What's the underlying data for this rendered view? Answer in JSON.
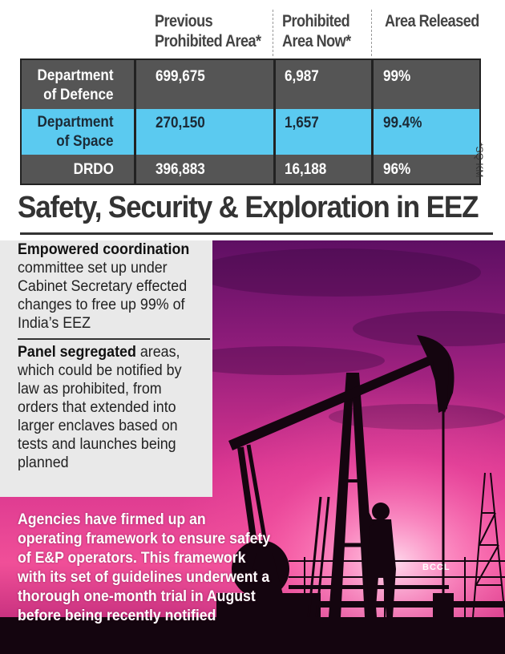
{
  "table": {
    "headers": [
      "Previous\nProhibited Area*",
      "Prohibited\nArea Now*",
      "Area Released"
    ],
    "header_lines": [
      [
        "Previous",
        "Prohibited Area*"
      ],
      [
        "Prohibited",
        "Area Now*"
      ],
      [
        "Area Released"
      ]
    ],
    "rows": [
      {
        "label": [
          "Department",
          "of Defence"
        ],
        "previous": "699,675",
        "now": "6,987",
        "released": "99%"
      },
      {
        "label": [
          "Department",
          "of Space"
        ],
        "previous": "270,150",
        "now": "1,657",
        "released": "99.4%"
      },
      {
        "label": [
          "DRDO"
        ],
        "previous": "396,883",
        "now": "16,188",
        "released": "96%"
      }
    ],
    "unit_note": "*SQ KM"
  },
  "heading": "Safety, Security & Exploration in EEZ",
  "paragraphs": [
    {
      "bold": "Empowered coordination",
      "text": " committee set up under Cabinet Secretary effected changes to free up 99% of India’s EEZ"
    },
    {
      "bold": "Panel segregated",
      "text": " areas, which could be notified by law as prohibited, from orders that extended into larger enclaves based on tests and launches being planned"
    }
  ],
  "bottom_text": "Agencies have firmed up an operating framework to ensure safety of E&P operators. This framework with its set of guidelines underwent a thorough one-month trial in August before being recently notified",
  "photo_credit": "BCCL",
  "colors": {
    "table_dark": "#555555",
    "table_highlight": "#5bcaf0",
    "sky_top": "#7a1570",
    "sky_glow": "#ff6fb5"
  }
}
